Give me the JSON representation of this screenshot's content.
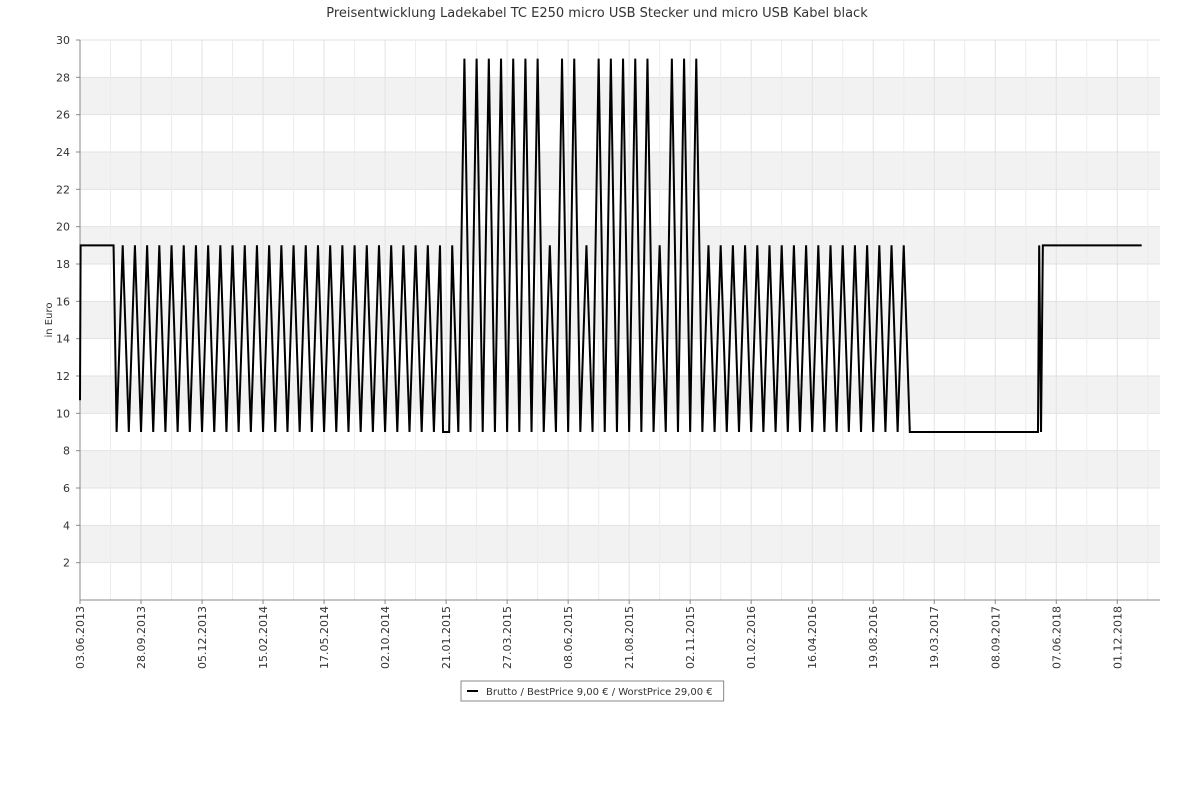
{
  "chart_data": {
    "type": "line",
    "title": "Preisentwicklung Ladekabel TC E250 micro USB Stecker und micro USB Kabel black",
    "y_label": "in Euro",
    "xlim": [
      0,
      17.7
    ],
    "xticks": [
      {
        "value": 0,
        "label": "03.06.2013"
      },
      {
        "value": 1,
        "label": "28.09.2013"
      },
      {
        "value": 2,
        "label": "05.12.2013"
      },
      {
        "value": 3,
        "label": "15.02.2014"
      },
      {
        "value": 4,
        "label": "17.05.2014"
      },
      {
        "value": 5,
        "label": "02.10.2014"
      },
      {
        "value": 6,
        "label": "21.01.2015"
      },
      {
        "value": 7,
        "label": "27.03.2015"
      },
      {
        "value": 8,
        "label": "08.06.2015"
      },
      {
        "value": 9,
        "label": "21.08.2015"
      },
      {
        "value": 10,
        "label": "02.11.2015"
      },
      {
        "value": 11,
        "label": "01.02.2016"
      },
      {
        "value": 12,
        "label": "16.04.2016"
      },
      {
        "value": 13,
        "label": "19.08.2016"
      },
      {
        "value": 14,
        "label": "19.03.2017"
      },
      {
        "value": 15,
        "label": "08.09.2017"
      },
      {
        "value": 16,
        "label": "07.06.2018"
      },
      {
        "value": 17,
        "label": "01.12.2018"
      }
    ],
    "ylim": [
      0,
      30
    ],
    "yticks": [
      2,
      4,
      6,
      8,
      10,
      12,
      14,
      16,
      18,
      20,
      22,
      24,
      26,
      28,
      30
    ],
    "grid": true,
    "legend": "bottom",
    "series": [
      {
        "name": "Brutto / BestPrice  9,00 € / WorstPrice  29,00 €",
        "color": "#000000",
        "x": [
          0,
          0.01,
          0.55,
          0.6,
          0.7,
          0.8,
          0.9,
          1.0,
          1.1,
          1.2,
          1.3,
          1.4,
          1.5,
          1.6,
          1.7,
          1.8,
          1.9,
          2.0,
          2.1,
          2.2,
          2.3,
          2.4,
          2.5,
          2.6,
          2.7,
          2.8,
          2.9,
          3.0,
          3.1,
          3.2,
          3.3,
          3.4,
          3.5,
          3.6,
          3.7,
          3.8,
          3.9,
          4.0,
          4.1,
          4.2,
          4.3,
          4.4,
          4.5,
          4.6,
          4.7,
          4.8,
          4.9,
          5.0,
          5.1,
          5.2,
          5.3,
          5.4,
          5.5,
          5.6,
          5.7,
          5.8,
          5.9,
          5.95,
          6.05,
          6.1,
          6.2,
          6.3,
          6.4,
          6.5,
          6.6,
          6.7,
          6.8,
          6.9,
          7.0,
          7.1,
          7.2,
          7.3,
          7.4,
          7.5,
          7.6,
          7.7,
          7.8,
          7.9,
          8.0,
          8.1,
          8.2,
          8.3,
          8.4,
          8.5,
          8.6,
          8.7,
          8.8,
          8.9,
          9.0,
          9.1,
          9.2,
          9.3,
          9.4,
          9.5,
          9.6,
          9.7,
          9.8,
          9.9,
          10.0,
          10.1,
          10.2,
          10.3,
          10.4,
          10.5,
          10.6,
          10.7,
          10.8,
          10.9,
          11.0,
          11.1,
          11.2,
          11.3,
          11.4,
          11.5,
          11.6,
          11.7,
          11.8,
          11.9,
          12.0,
          12.1,
          12.2,
          12.3,
          12.4,
          12.5,
          12.6,
          12.7,
          12.8,
          12.9,
          13.0,
          13.1,
          13.2,
          13.3,
          13.4,
          13.5,
          13.6,
          15.7,
          15.72,
          15.75,
          15.78,
          17.4
        ],
        "values": [
          10.7,
          19,
          19,
          9,
          19,
          9,
          19,
          9,
          19,
          9,
          19,
          9,
          19,
          9,
          19,
          9,
          19,
          9,
          19,
          9,
          19,
          9,
          19,
          9,
          19,
          9,
          19,
          9,
          19,
          9,
          19,
          9,
          19,
          9,
          19,
          9,
          19,
          9,
          19,
          9,
          19,
          9,
          19,
          9,
          19,
          9,
          19,
          9,
          19,
          9,
          19,
          9,
          19,
          9,
          19,
          9,
          19,
          9,
          9,
          19,
          9,
          29,
          9,
          29,
          9,
          29,
          9,
          29,
          9,
          29,
          9,
          29,
          9,
          29,
          9,
          19,
          9,
          29,
          9,
          29,
          9,
          19,
          9,
          29,
          9,
          29,
          9,
          29,
          9,
          29,
          9,
          29,
          9,
          19,
          9,
          29,
          9,
          29,
          9,
          29,
          9,
          19,
          9,
          19,
          9,
          19,
          9,
          19,
          9,
          19,
          9,
          19,
          9,
          19,
          9,
          19,
          9,
          19,
          9,
          19,
          9,
          19,
          9,
          19,
          9,
          19,
          9,
          19,
          9,
          19,
          9,
          19,
          9,
          19,
          9,
          9,
          19,
          9,
          19,
          19
        ]
      }
    ]
  }
}
